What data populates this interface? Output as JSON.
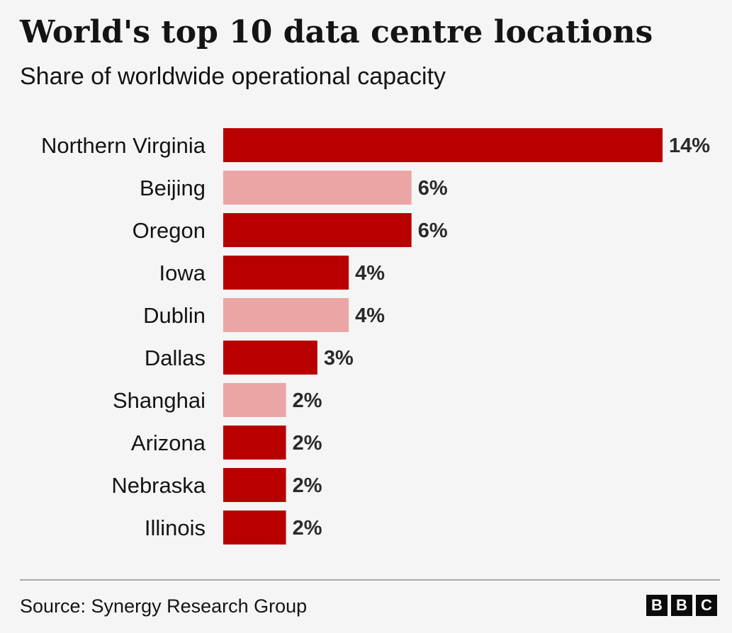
{
  "header": {
    "title": "World's top 10 data centre locations",
    "subtitle": "Share of worldwide operational capacity"
  },
  "footer": {
    "source": "Source: Synergy Research Group",
    "logo_letters": [
      "B",
      "B",
      "C"
    ]
  },
  "colors": {
    "us": "#b80000",
    "non_us": "#eba5a5",
    "background": "#f5f5f5"
  },
  "chart_data": {
    "type": "bar",
    "orientation": "horizontal",
    "title": "World's top 10 data centre locations",
    "subtitle": "Share of worldwide operational capacity",
    "unit": "%",
    "categories": [
      "Northern Virginia",
      "Beijing",
      "Oregon",
      "Iowa",
      "Dublin",
      "Dallas",
      "Shanghai",
      "Arizona",
      "Nebraska",
      "Illinois"
    ],
    "values": [
      14,
      6,
      6,
      4,
      4,
      3,
      2,
      2,
      2,
      2
    ],
    "value_labels": [
      "14%",
      "6%",
      "6%",
      "4%",
      "4%",
      "3%",
      "2%",
      "2%",
      "2%",
      "2%"
    ],
    "bar_colors": [
      "#b80000",
      "#eba5a5",
      "#b80000",
      "#b80000",
      "#eba5a5",
      "#b80000",
      "#eba5a5",
      "#b80000",
      "#b80000",
      "#b80000"
    ],
    "xlim": [
      0,
      14
    ],
    "grid": false,
    "legend": "none"
  }
}
